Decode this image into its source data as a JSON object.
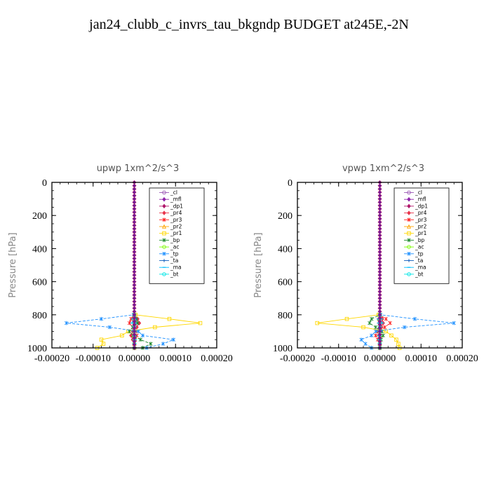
{
  "figure_title": "jan24_clubb_c_invrs_tau_bkgndp  BUDGET at245E,-2N",
  "chart_data": [
    {
      "type": "line",
      "title": "upwp   1xm^2/s^3",
      "ylabel": "Pressure [hPa]",
      "xlim": [
        -0.0002,
        0.0002
      ],
      "ylim": [
        1000,
        0
      ],
      "xticks": [
        "-0.00020",
        "-0.00010",
        "0.00000",
        "0.00010",
        "0.00020"
      ],
      "yticks": [
        "0",
        "200",
        "400",
        "600",
        "800",
        "1000"
      ],
      "legend_position": "top-right",
      "y": [
        800,
        825,
        850,
        875,
        900,
        925,
        950,
        975,
        1000
      ],
      "series": [
        {
          "name": "_cl",
          "color": "#9b59b6",
          "marker": "circle",
          "values": [
            0,
            0,
            0,
            0,
            0,
            0,
            0,
            0,
            0
          ]
        },
        {
          "name": "_mfl",
          "color": "#8e24aa",
          "marker": "diamond",
          "values": [
            0,
            0,
            0,
            0,
            0,
            0,
            0,
            0,
            0
          ]
        },
        {
          "name": "_dp1",
          "color": "#b0176a",
          "marker": "diamond",
          "values": [
            0,
            0,
            0,
            0,
            0,
            0,
            0,
            0,
            0
          ]
        },
        {
          "name": "_pr4",
          "color": "#e8334a",
          "marker": "diamond",
          "values": [
            0,
            8e-06,
            1.2e-05,
            6e-06,
            -4e-06,
            -8e-06,
            -4e-06,
            0,
            2e-06
          ]
        },
        {
          "name": "_pr3",
          "color": "#ff2020",
          "marker": "star",
          "values": [
            0,
            -8e-06,
            -1.2e-05,
            -4e-06,
            4e-06,
            6e-06,
            2e-06,
            0,
            0
          ]
        },
        {
          "name": "_pr2",
          "color": "#ffa500",
          "marker": "triangle",
          "values": [
            0,
            2e-06,
            0,
            0,
            0,
            -2e-06,
            0,
            0,
            0
          ]
        },
        {
          "name": "_pr1",
          "color": "#ffd700",
          "marker": "square",
          "values": [
            3e-06,
            8.5e-05,
            0.00016,
            5e-05,
            -1.5e-05,
            -3e-05,
            -8e-05,
            -7.5e-05,
            -9e-05
          ]
        },
        {
          "name": "_bp",
          "color": "#1f8a2e",
          "marker": "star",
          "values": [
            0,
            5e-06,
            8e-06,
            -4e-06,
            -1.2e-05,
            -3e-06,
            1.5e-05,
            4e-05,
            2e-05
          ]
        },
        {
          "name": "_ac",
          "color": "#7cfc00",
          "marker": "circle",
          "values": [
            0,
            0,
            0,
            0,
            0,
            0,
            0,
            0,
            0
          ]
        },
        {
          "name": "_tp",
          "color": "#1e90ff",
          "marker": "star",
          "values": [
            -2e-06,
            -8e-05,
            -0.000165,
            -6e-05,
            1e-05,
            2e-05,
            9.5e-05,
            7e-05,
            3e-05
          ]
        },
        {
          "name": "_ta",
          "color": "#1560bd",
          "marker": "plus",
          "values": [
            0,
            4e-06,
            3e-06,
            0,
            -3e-06,
            3e-06,
            1e-06,
            0,
            0
          ]
        },
        {
          "name": "_ma",
          "color": "#00bfff",
          "marker": "dash",
          "values": [
            0,
            -4e-06,
            -6e-06,
            0,
            4e-06,
            0,
            2e-06,
            1e-06,
            0
          ]
        },
        {
          "name": "_bt",
          "color": "#00e5e5",
          "marker": "circle",
          "values": [
            0,
            0,
            0,
            0,
            0,
            0,
            0,
            0,
            0
          ]
        }
      ]
    },
    {
      "type": "line",
      "title": "vpwp   1xm^2/s^3",
      "ylabel": "Pressure [hPa]",
      "xlim": [
        -0.0002,
        0.0002
      ],
      "ylim": [
        1000,
        0
      ],
      "xticks": [
        "-0.00020",
        "-0.00010",
        "0.00000",
        "0.00010",
        "0.00020"
      ],
      "yticks": [
        "0",
        "200",
        "400",
        "600",
        "800",
        "1000"
      ],
      "legend_position": "top-right",
      "y": [
        800,
        825,
        850,
        875,
        900,
        925,
        950,
        975,
        1000
      ],
      "series": [
        {
          "name": "_cl",
          "color": "#9b59b6",
          "marker": "circle",
          "values": [
            0,
            0,
            0,
            0,
            0,
            0,
            0,
            0,
            0
          ]
        },
        {
          "name": "_mfl",
          "color": "#8e24aa",
          "marker": "diamond",
          "values": [
            0,
            0,
            0,
            0,
            0,
            0,
            0,
            0,
            0
          ]
        },
        {
          "name": "_dp1",
          "color": "#b0176a",
          "marker": "diamond",
          "values": [
            0,
            0,
            0,
            0,
            0,
            0,
            0,
            0,
            0
          ]
        },
        {
          "name": "_pr4",
          "color": "#e8334a",
          "marker": "diamond",
          "values": [
            0,
            6e-06,
            8e-06,
            4e-06,
            -4e-06,
            -2e-06,
            0,
            0,
            0
          ]
        },
        {
          "name": "_pr3",
          "color": "#ff2020",
          "marker": "star",
          "values": [
            0,
            1.5e-05,
            2.5e-05,
            1.2e-05,
            -5e-06,
            -1e-05,
            -5e-06,
            0,
            0
          ]
        },
        {
          "name": "_pr2",
          "color": "#ffa500",
          "marker": "triangle",
          "values": [
            0,
            -2e-06,
            0,
            0,
            0,
            2e-06,
            0,
            0,
            0
          ]
        },
        {
          "name": "_pr1",
          "color": "#ffd700",
          "marker": "square",
          "values": [
            -3e-06,
            -8e-05,
            -0.000152,
            -4e-05,
            1.5e-05,
            2.8e-05,
            4e-05,
            4.5e-05,
            4.8e-05
          ]
        },
        {
          "name": "_bp",
          "color": "#1f8a2e",
          "marker": "star",
          "values": [
            0,
            -2e-05,
            -2.5e-05,
            -1e-05,
            5e-06,
            8e-06,
            3e-06,
            0,
            0
          ]
        },
        {
          "name": "_ac",
          "color": "#7cfc00",
          "marker": "circle",
          "values": [
            0,
            0,
            0,
            0,
            0,
            0,
            0,
            0,
            0
          ]
        },
        {
          "name": "_tp",
          "color": "#1e90ff",
          "marker": "star",
          "values": [
            2e-06,
            8.5e-05,
            0.00018,
            6e-05,
            -1e-05,
            -2e-05,
            -4.5e-05,
            -3.5e-05,
            -2e-05
          ]
        },
        {
          "name": "_ta",
          "color": "#1560bd",
          "marker": "plus",
          "values": [
            0,
            -4e-06,
            -3e-06,
            0,
            3e-06,
            -3e-06,
            -1e-06,
            0,
            0
          ]
        },
        {
          "name": "_ma",
          "color": "#00bfff",
          "marker": "dash",
          "values": [
            0,
            4e-06,
            6e-06,
            0,
            -4e-06,
            0,
            -2e-06,
            -1e-06,
            0
          ]
        },
        {
          "name": "_bt",
          "color": "#00e5e5",
          "marker": "circle",
          "values": [
            0,
            0,
            0,
            0,
            0,
            0,
            0,
            0,
            0
          ]
        }
      ]
    }
  ]
}
